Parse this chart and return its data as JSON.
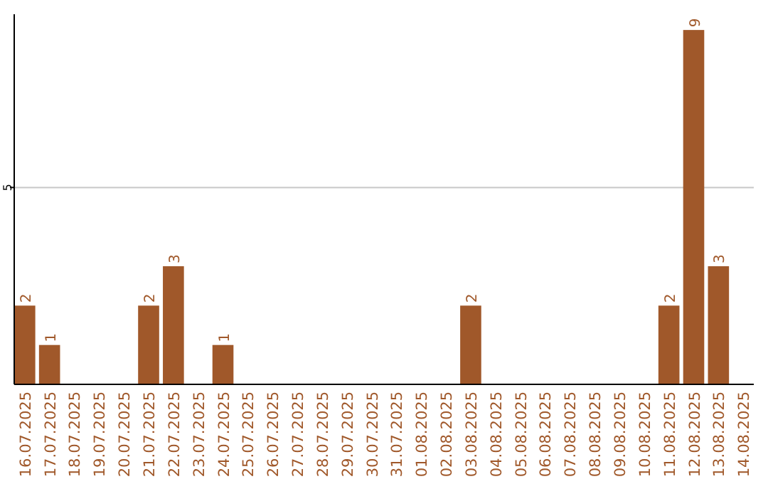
{
  "chart_data": {
    "type": "bar",
    "categories": [
      "16.07.2025",
      "17.07.2025",
      "18.07.2025",
      "19.07.2025",
      "20.07.2025",
      "21.07.2025",
      "22.07.2025",
      "23.07.2025",
      "24.07.2025",
      "25.07.2025",
      "26.07.2025",
      "27.07.2025",
      "28.07.2025",
      "29.07.2025",
      "30.07.2025",
      "31.07.2025",
      "01.08.2025",
      "02.08.2025",
      "03.08.2025",
      "04.08.2025",
      "05.08.2025",
      "06.08.2025",
      "07.08.2025",
      "08.08.2025",
      "09.08.2025",
      "10.08.2025",
      "11.08.2025",
      "12.08.2025",
      "13.08.2025",
      "14.08.2025"
    ],
    "values": [
      2,
      1,
      0,
      0,
      0,
      2,
      3,
      0,
      1,
      0,
      0,
      0,
      0,
      0,
      0,
      0,
      0,
      0,
      2,
      0,
      0,
      0,
      0,
      0,
      0,
      0,
      2,
      9,
      3,
      0
    ],
    "value_labels": [
      "2",
      "1",
      null,
      null,
      null,
      "2",
      "3",
      null,
      "1",
      null,
      null,
      null,
      null,
      null,
      null,
      null,
      null,
      null,
      "2",
      null,
      null,
      null,
      null,
      null,
      null,
      null,
      "2",
      "9",
      "3",
      null
    ],
    "color": "#a0582a",
    "ylim": [
      0,
      9.4
    ],
    "yticks": [
      5
    ],
    "grid": "y"
  }
}
